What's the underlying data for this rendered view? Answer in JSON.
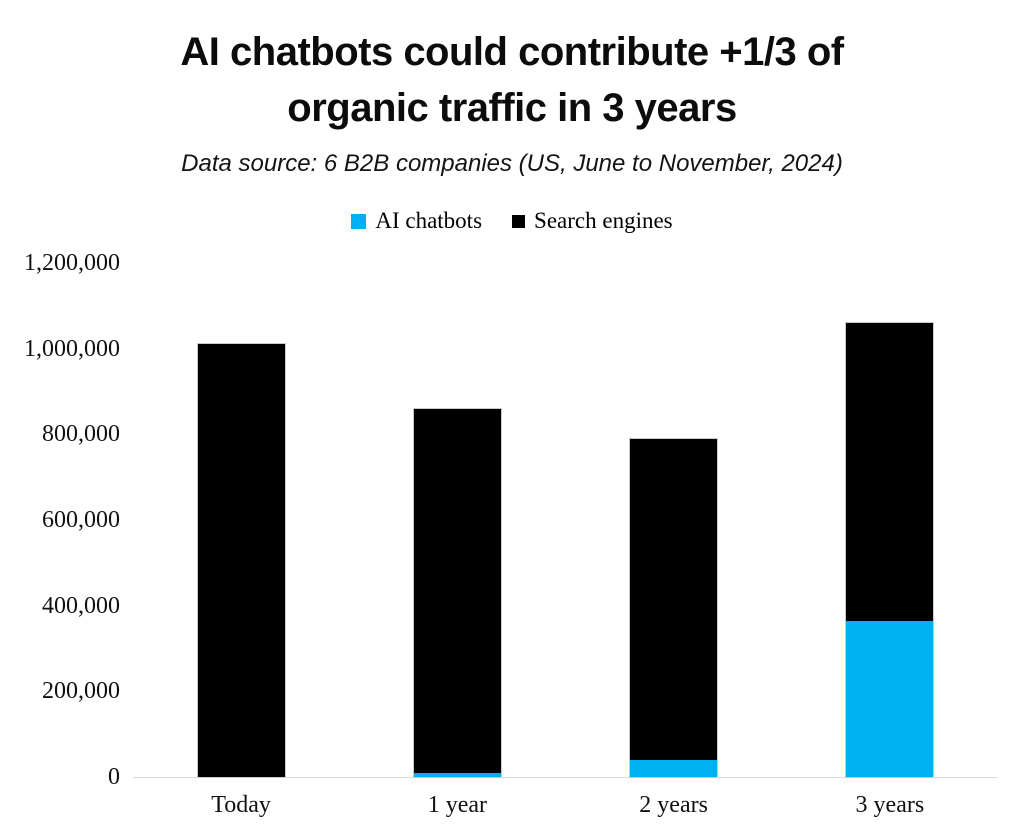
{
  "title": {
    "line1": "AI chatbots could contribute +1/3 of",
    "line2": "organic traffic in 3 years"
  },
  "subtitle": "Data source: 6 B2B companies (US, June to November, 2024)",
  "legend": {
    "items": [
      {
        "label": "AI chatbots",
        "color": "#00b0f0"
      },
      {
        "label": "Search engines",
        "color": "#000000"
      }
    ]
  },
  "chart_data": {
    "type": "bar",
    "stacked": true,
    "title": "AI chatbots could contribute +1/3 of organic traffic in 3 years",
    "subtitle": "Data source: 6 B2B companies (US, June to November, 2024)",
    "categories": [
      "Today",
      "1 year",
      "2 years",
      "3 years"
    ],
    "series": [
      {
        "name": "AI chatbots",
        "color": "#00b0f0",
        "values": [
          0,
          10000,
          40000,
          365000
        ]
      },
      {
        "name": "Search engines",
        "color": "#000000",
        "values": [
          1010000,
          850000,
          750000,
          695000
        ]
      }
    ],
    "totals": [
      1010000,
      860000,
      790000,
      1060000
    ],
    "xlabel": "",
    "ylabel": "",
    "ylim": [
      0,
      1200000
    ],
    "ytick_interval": 200000,
    "yticks": [
      "1,200,000",
      "1,000,000",
      "800,000",
      "600,000",
      "400,000",
      "200,000",
      "0"
    ],
    "grid": false,
    "legend_position": "top",
    "axis_line_color": "#d9d9d9"
  }
}
